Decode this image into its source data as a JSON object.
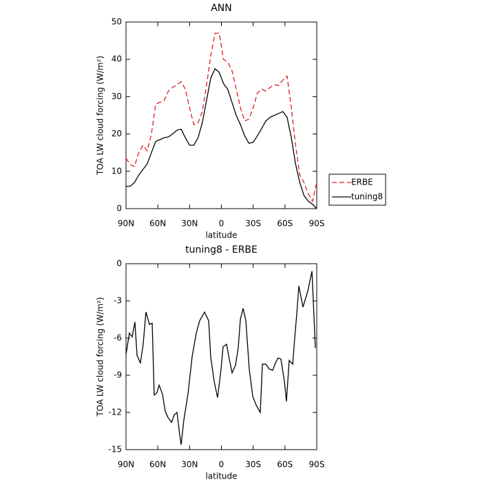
{
  "chart_data": [
    {
      "type": "line",
      "title": "ANN",
      "xlabel": "latitude",
      "ylabel": "TOA LW cloud forcing (W/m²)",
      "x": [
        90,
        86,
        82,
        78,
        74,
        70,
        66,
        62,
        58,
        54,
        50,
        46,
        42,
        38,
        34,
        30,
        26,
        22,
        18,
        14,
        10,
        6,
        2,
        -2,
        -6,
        -10,
        -14,
        -18,
        -22,
        -26,
        -30,
        -34,
        -38,
        -42,
        -46,
        -50,
        -54,
        -58,
        -62,
        -66,
        -70,
        -74,
        -78,
        -82,
        -86,
        -90
      ],
      "series": [
        {
          "name": "ERBE",
          "color": "#e41a1c",
          "dash": true,
          "values": [
            13.5,
            11.8,
            11.3,
            15,
            17,
            15.5,
            20,
            28,
            28.5,
            29,
            31.5,
            32.5,
            33.2,
            34,
            32,
            27,
            22.5,
            23,
            26,
            33,
            41,
            47,
            47,
            40,
            39.3,
            37,
            32,
            27,
            23.5,
            24,
            27,
            31,
            32,
            31.5,
            32.5,
            33.2,
            33,
            34.5,
            35.5,
            27,
            17,
            9,
            7,
            4,
            2,
            7
          ]
        },
        {
          "name": "tuning8",
          "color": "#000000",
          "dash": false,
          "values": [
            6,
            6,
            7,
            9,
            10.5,
            12,
            15,
            18,
            18.5,
            19,
            19.2,
            20,
            21,
            21.3,
            19,
            17,
            17,
            19,
            23,
            29,
            35,
            37.5,
            36.5,
            33.5,
            32,
            28.5,
            25,
            22.5,
            19.5,
            17.5,
            17.8,
            19.5,
            21.5,
            23.5,
            24.5,
            25,
            25.5,
            26,
            24.5,
            19,
            12,
            7,
            3.5,
            2,
            1.2,
            0
          ]
        }
      ],
      "xlim": [
        90,
        -90
      ],
      "xticks": [
        {
          "value": 90,
          "label": "90N"
        },
        {
          "value": 60,
          "label": "60N"
        },
        {
          "value": 30,
          "label": "30N"
        },
        0,
        {
          "value": -30,
          "label": "30S"
        },
        {
          "value": -60,
          "label": "60S"
        },
        {
          "value": -90,
          "label": "90S"
        }
      ],
      "ylim": [
        0,
        50
      ],
      "yticks": [
        0,
        10,
        20,
        30,
        40,
        50
      ],
      "legend": "right"
    },
    {
      "type": "line",
      "title": "tuning8 - ERBE",
      "xlabel": "latitude",
      "ylabel": "TOA LW cloud forcing (W/m²)",
      "x": [
        90,
        86.8,
        84.2,
        81.6,
        79.6,
        76.4,
        73.8,
        71.2,
        67.9,
        65.3,
        63.4,
        60.8,
        58.8,
        55.6,
        53,
        50.4,
        47.1,
        44.5,
        41.9,
        39.3,
        38,
        35.4,
        31.5,
        27.6,
        23.7,
        20.5,
        15.9,
        12,
        10.1,
        6.8,
        3.6,
        0.3,
        -1.6,
        -4.9,
        -7.5,
        -10.1,
        -13.3,
        -15.9,
        -17.9,
        -20.5,
        -23.1,
        -26.3,
        -29.6,
        -32.8,
        -36.7,
        -38.7,
        -41.9,
        -45.2,
        -48.4,
        -51,
        -53.6,
        -56.2,
        -59.5,
        -61.4,
        -64,
        -67.3,
        -69.2,
        -71.2,
        -73.1,
        -77,
        -81.6,
        -85.5,
        -88.7
      ],
      "values": [
        -7.3,
        -5.6,
        -5.9,
        -4.7,
        -7.4,
        -8,
        -6.5,
        -3.9,
        -4.9,
        -4.8,
        -10.6,
        -10.4,
        -9.8,
        -10.5,
        -11.9,
        -12.4,
        -12.8,
        -12.2,
        -12,
        -13.8,
        -14.6,
        -12.6,
        -10.5,
        -7.5,
        -5.6,
        -4.6,
        -3.9,
        -4.6,
        -7.5,
        -9.5,
        -10.8,
        -8.5,
        -6.7,
        -6.5,
        -7.7,
        -8.8,
        -8.2,
        -6.8,
        -4.5,
        -3.6,
        -4.6,
        -8.5,
        -10.7,
        -11.4,
        -12,
        -8.1,
        -8.1,
        -8.5,
        -8.6,
        -8,
        -7.6,
        -7.7,
        -9.5,
        -11.1,
        -7.8,
        -8.1,
        -6,
        -4,
        -1.8,
        -3.5,
        -2.2,
        -0.6,
        -6.8
      ],
      "color": "#000000",
      "xlim": [
        90,
        -90
      ],
      "xticks": [
        {
          "value": 90,
          "label": "90N"
        },
        {
          "value": 60,
          "label": "60N"
        },
        {
          "value": 30,
          "label": "30N"
        },
        0,
        {
          "value": -30,
          "label": "30S"
        },
        {
          "value": -60,
          "label": "60S"
        },
        {
          "value": -90,
          "label": "90S"
        }
      ],
      "ylim": [
        -15,
        0
      ],
      "yticks": [
        -15,
        -12,
        -9,
        -6,
        -3,
        0
      ]
    }
  ]
}
